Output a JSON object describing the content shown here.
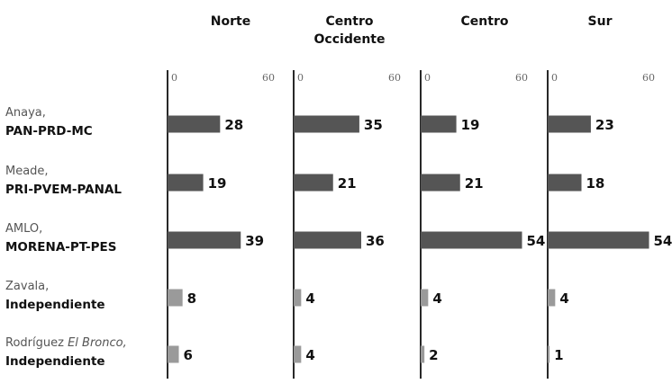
{
  "chart_data": {
    "type": "bar",
    "orientation": "horizontal",
    "xlim": [
      0,
      60
    ],
    "tick_labels": [
      "0",
      "60"
    ],
    "regions": [
      {
        "title_lines": [
          "Norte"
        ]
      },
      {
        "title_lines": [
          "Centro",
          "Occidente"
        ]
      },
      {
        "title_lines": [
          "Centro"
        ]
      },
      {
        "title_lines": [
          "Sur"
        ]
      }
    ],
    "candidates": [
      {
        "name": "Anaya,",
        "party": "PAN-PRD-MC",
        "color": "#555555",
        "values": [
          28,
          35,
          19,
          23
        ]
      },
      {
        "name": "Meade,",
        "party": "PRI-PVEM-PANAL",
        "color": "#555555",
        "values": [
          19,
          21,
          21,
          18
        ]
      },
      {
        "name": "AMLO,",
        "party": "MORENA-PT-PES",
        "color": "#555555",
        "values": [
          39,
          36,
          54,
          54
        ]
      },
      {
        "name": "Zavala,",
        "party": "Independiente",
        "color": "#9a9a9a",
        "values": [
          8,
          4,
          4,
          4
        ]
      },
      {
        "name": "Rodríguez",
        "name_italic": "El Bronco,",
        "party": "Independiente",
        "color": "#9a9a9a",
        "values": [
          6,
          4,
          2,
          1
        ]
      }
    ]
  }
}
